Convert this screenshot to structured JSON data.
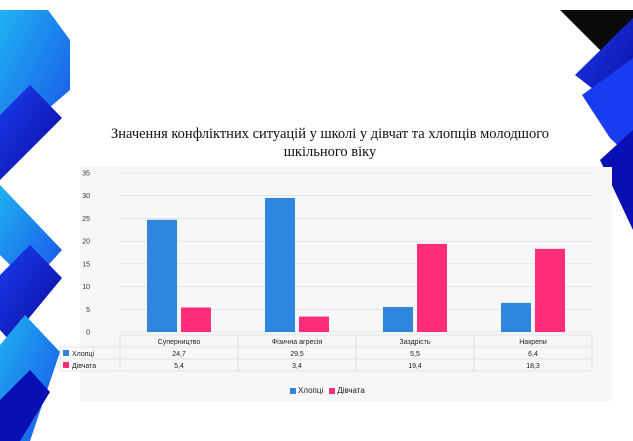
{
  "chart_data": {
    "type": "bar",
    "title": "Значення конфліктних ситуацій у школі у дівчат та хлопців молодшого шкільного віку",
    "title_lines": [
      "Значення конфліктних ситуацій у школі у дівчат та хлопців молодшого",
      "шкільного віку"
    ],
    "categories": [
      "Суперництво",
      "Фізична агресія",
      "Заздрість",
      "Накрепи"
    ],
    "series": [
      {
        "name": "Хлопці",
        "values": [
          24.7,
          29.5,
          5.5,
          6.4
        ],
        "labels": [
          "24,7",
          "29,5",
          "5,5",
          "6,4"
        ],
        "color": "#2e86de"
      },
      {
        "name": "Дівчата",
        "values": [
          5.4,
          3.4,
          19.4,
          18.3
        ],
        "labels": [
          "5,4",
          "3,4",
          "19,4",
          "18,3"
        ],
        "color": "#ff2d7a"
      }
    ],
    "ylim": [
      0,
      35
    ],
    "yticks": [
      "0",
      "5",
      "10",
      "15",
      "20",
      "25",
      "30",
      "35"
    ],
    "grid": true,
    "legend": "bottom",
    "data_table": true
  },
  "decor": {
    "blue_dark": "#0a0fb4",
    "blue_mid": "#1a3cf0",
    "blue_light": "#16a8f0",
    "black": "#0a0a0a"
  }
}
